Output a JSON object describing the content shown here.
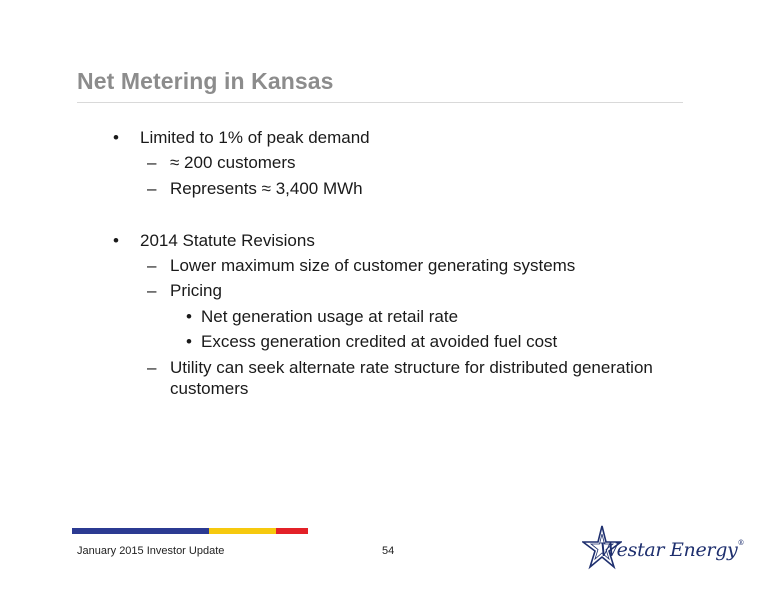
{
  "title": "Net Metering in Kansas",
  "colors": {
    "title": "#8c8c8c",
    "bar_blue": "#2b3a92",
    "bar_yellow": "#f6c90e",
    "bar_red": "#e32128",
    "logo_blue": "#1e2f6e"
  },
  "bullets": [
    {
      "text": "Limited to 1% of peak demand",
      "sub": [
        {
          "text": "≈ 200 customers"
        },
        {
          "text": "Represents ≈ 3,400 MWh"
        }
      ]
    },
    {
      "text": "2014 Statute Revisions",
      "sub": [
        {
          "text": "Lower maximum size of customer generating systems"
        },
        {
          "text": "Pricing",
          "sub": [
            {
              "text": "Net generation usage at retail rate"
            },
            {
              "text": "Excess generation credited at avoided fuel cost"
            }
          ]
        },
        {
          "text": "Utility can seek alternate rate structure for distributed generation",
          "text_cont": "customers"
        }
      ]
    }
  ],
  "markers": {
    "level1": "•",
    "level2": "–",
    "level3": "•"
  },
  "footer": {
    "left": "January 2015 Investor Update",
    "page": "54"
  },
  "logo": {
    "text": "Westar Energy",
    "reg": "®",
    "icon": "star-logo-icon"
  }
}
